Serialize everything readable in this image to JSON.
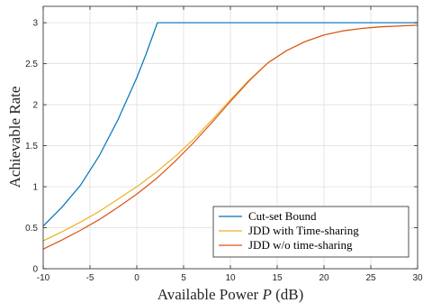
{
  "chart_data": {
    "type": "line",
    "xlabel_prefix": "Available Power ",
    "xlabel_var": "P",
    "xlabel_suffix": " (dB)",
    "ylabel": "Achievable Rate",
    "xlim": [
      -10,
      30
    ],
    "ylim": [
      0,
      3.2
    ],
    "grid": true,
    "legend_position": "bottom-right",
    "x_ticks": [
      -10,
      -5,
      0,
      5,
      10,
      15,
      20,
      25,
      30
    ],
    "y_ticks": [
      0,
      0.5,
      1,
      1.5,
      2,
      2.5,
      3
    ],
    "x_tick_labels": [
      "-10",
      "-5",
      "0",
      "5",
      "10",
      "15",
      "20",
      "25",
      "30"
    ],
    "y_tick_labels": [
      "0",
      "0.5",
      "1",
      "1.5",
      "2",
      "2.5",
      "3"
    ],
    "series": [
      {
        "name": "Cut-set Bound",
        "color": "#0072BD",
        "x": [
          -10,
          -8,
          -6,
          -4,
          -2,
          0,
          1,
          2.2,
          5,
          10,
          15,
          20,
          25,
          30
        ],
        "y": [
          0.52,
          0.75,
          1.02,
          1.38,
          1.82,
          2.33,
          2.62,
          3.0,
          3.0,
          3.0,
          3.0,
          3.0,
          3.0,
          3.0
        ]
      },
      {
        "name": "JDD with Time-sharing",
        "color": "#EDB120",
        "x": [
          -10,
          -8,
          -6,
          -4,
          -2,
          0,
          2,
          4,
          6,
          8,
          10,
          12,
          14,
          16,
          18,
          20,
          22,
          24,
          26,
          28,
          30
        ],
        "y": [
          0.34,
          0.45,
          0.57,
          0.7,
          0.85,
          1.0,
          1.17,
          1.36,
          1.57,
          1.81,
          2.06,
          2.3,
          2.51,
          2.66,
          2.77,
          2.85,
          2.9,
          2.93,
          2.95,
          2.96,
          2.97
        ]
      },
      {
        "name": "JDD w/o time-sharing",
        "color": "#D95319",
        "x": [
          -10,
          -8,
          -6,
          -4,
          -2,
          0,
          2,
          4,
          6,
          8,
          10,
          12,
          14,
          16,
          18,
          20,
          22,
          24,
          26,
          28,
          30
        ],
        "y": [
          0.24,
          0.35,
          0.47,
          0.6,
          0.75,
          0.91,
          1.09,
          1.3,
          1.53,
          1.78,
          2.04,
          2.29,
          2.51,
          2.66,
          2.77,
          2.85,
          2.9,
          2.93,
          2.95,
          2.96,
          2.97
        ]
      }
    ]
  }
}
